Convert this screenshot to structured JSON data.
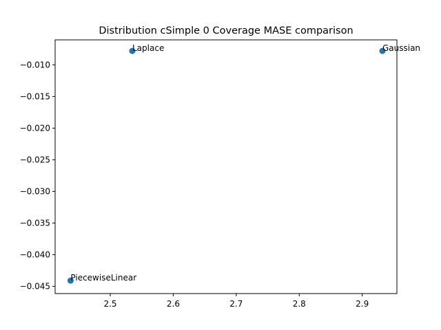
{
  "chart_data": {
    "type": "scatter",
    "title": "Distribution cSimple 0 Coverage MASE comparison",
    "xlabel": "",
    "ylabel": "",
    "xlim": [
      2.4125,
      2.955
    ],
    "ylim": [
      -0.04615,
      -0.00605
    ],
    "xticks": [
      2.5,
      2.6,
      2.7,
      2.8,
      2.9
    ],
    "xtick_labels": [
      "2.5",
      "2.6",
      "2.7",
      "2.8",
      "2.9"
    ],
    "yticks": [
      -0.01,
      -0.015,
      -0.02,
      -0.025,
      -0.03,
      -0.035,
      -0.04,
      -0.045
    ],
    "ytick_labels": [
      "−0.010",
      "−0.015",
      "−0.020",
      "−0.025",
      "−0.030",
      "−0.035",
      "−0.040",
      "−0.045"
    ],
    "grid": false,
    "marker_color": "#1f77b4",
    "points": [
      {
        "label": "Laplace",
        "x": 2.535,
        "y": -0.0078
      },
      {
        "label": "Gaussian",
        "x": 2.932,
        "y": -0.0078
      },
      {
        "label": "PiecewiseLinear",
        "x": 2.437,
        "y": -0.0441
      }
    ]
  }
}
